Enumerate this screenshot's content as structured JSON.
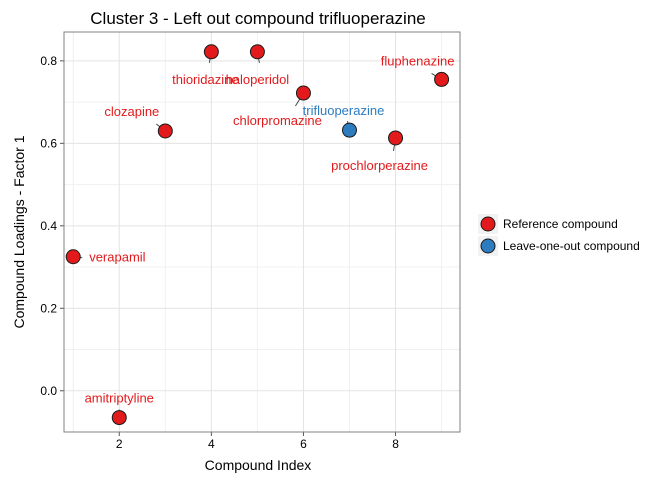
{
  "chart_data": {
    "type": "scatter",
    "title": "Cluster 3 - Left out compound trifluoperazine",
    "xlabel": "Compound Index",
    "ylabel": "Compound Loadings - Factor 1",
    "xlim": [
      0.8,
      9.4
    ],
    "ylim": [
      -0.1,
      0.87
    ],
    "xticks": [
      2,
      4,
      6,
      8
    ],
    "yticks": [
      0.0,
      0.2,
      0.4,
      0.6,
      0.8
    ],
    "xtick_labels": [
      "2",
      "4",
      "6",
      "8"
    ],
    "ytick_labels": [
      "0.0",
      "0.2",
      "0.4",
      "0.6",
      "0.8"
    ],
    "grid": true,
    "legend_position": "right",
    "legend": [
      {
        "label": "Reference compound",
        "color": "#e31a1c"
      },
      {
        "label": "Leave-one-out compound",
        "color": "#2d7cc0"
      }
    ],
    "points": [
      {
        "x": 1,
        "y": 0.325,
        "label": "verapamil",
        "group": "Reference compound"
      },
      {
        "x": 2,
        "y": -0.065,
        "label": "amitriptyline",
        "group": "Reference compound"
      },
      {
        "x": 3,
        "y": 0.63,
        "label": "clozapine",
        "group": "Reference compound"
      },
      {
        "x": 4,
        "y": 0.822,
        "label": "thioridazine",
        "group": "Reference compound"
      },
      {
        "x": 5,
        "y": 0.822,
        "label": "haloperidol",
        "group": "Reference compound"
      },
      {
        "x": 6,
        "y": 0.722,
        "label": "chlorpromazine",
        "group": "Reference compound"
      },
      {
        "x": 7,
        "y": 0.632,
        "label": "trifluoperazine",
        "group": "Leave-one-out compound"
      },
      {
        "x": 8,
        "y": 0.613,
        "label": "prochlorperazine",
        "group": "Reference compound"
      },
      {
        "x": 9,
        "y": 0.755,
        "label": "fluphenazine",
        "group": "Reference compound"
      }
    ]
  }
}
